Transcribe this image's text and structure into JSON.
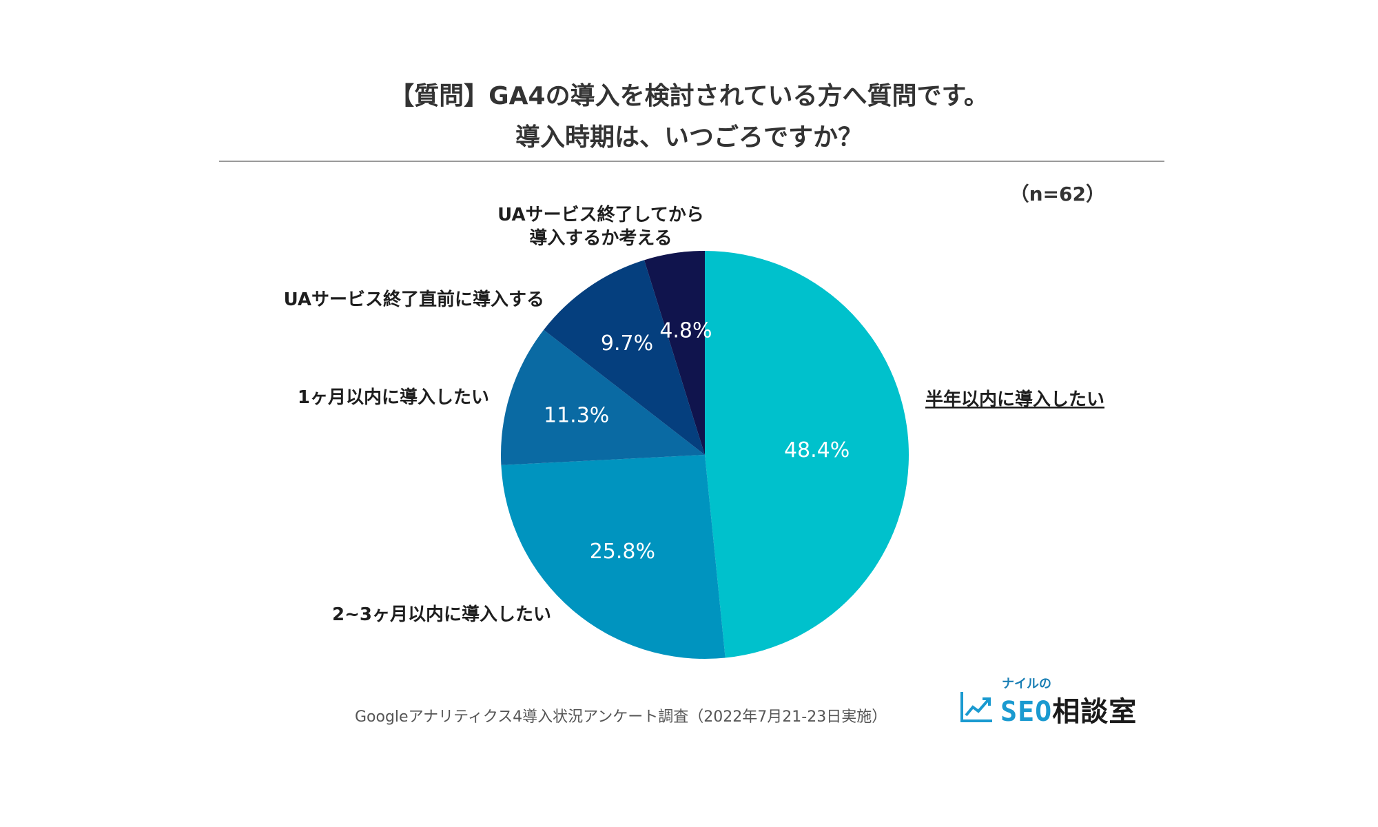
{
  "title_lines": [
    "【質問】GA4の導入を検討されている方へ質問です。",
    "導入時期は、いつごろですか？"
  ],
  "sample": "（n=62）",
  "chart_data": {
    "type": "pie",
    "start_angle": "12 o'clock",
    "direction": "clockwise",
    "slices": [
      {
        "label": "半年以内に導入したい",
        "value": 48.4,
        "value_label": "48.4%",
        "color": "#00c1cc"
      },
      {
        "label": "2~3ヶ月以内に導入したい",
        "value": 25.8,
        "value_label": "25.8%",
        "color": "#0094bf"
      },
      {
        "label": "1ヶ月以内に導入したい",
        "value": 11.3,
        "value_label": "11.3%",
        "color": "#0a6aa3"
      },
      {
        "label": "UAサービス終了直前に導入する",
        "value": 9.7,
        "value_label": "9.7%",
        "color": "#053f7e"
      },
      {
        "label": "UAサービス終了してから\n導入するか考える",
        "value": 4.8,
        "value_label": "4.8%",
        "color": "#10144d"
      }
    ]
  },
  "footer": "Googleアナリティクス4導入状況アンケート調査（2022年7月21-23日実施）",
  "logo": {
    "tagline": "ナイルの",
    "brand": "SEO",
    "brand_jp": "相談室"
  }
}
